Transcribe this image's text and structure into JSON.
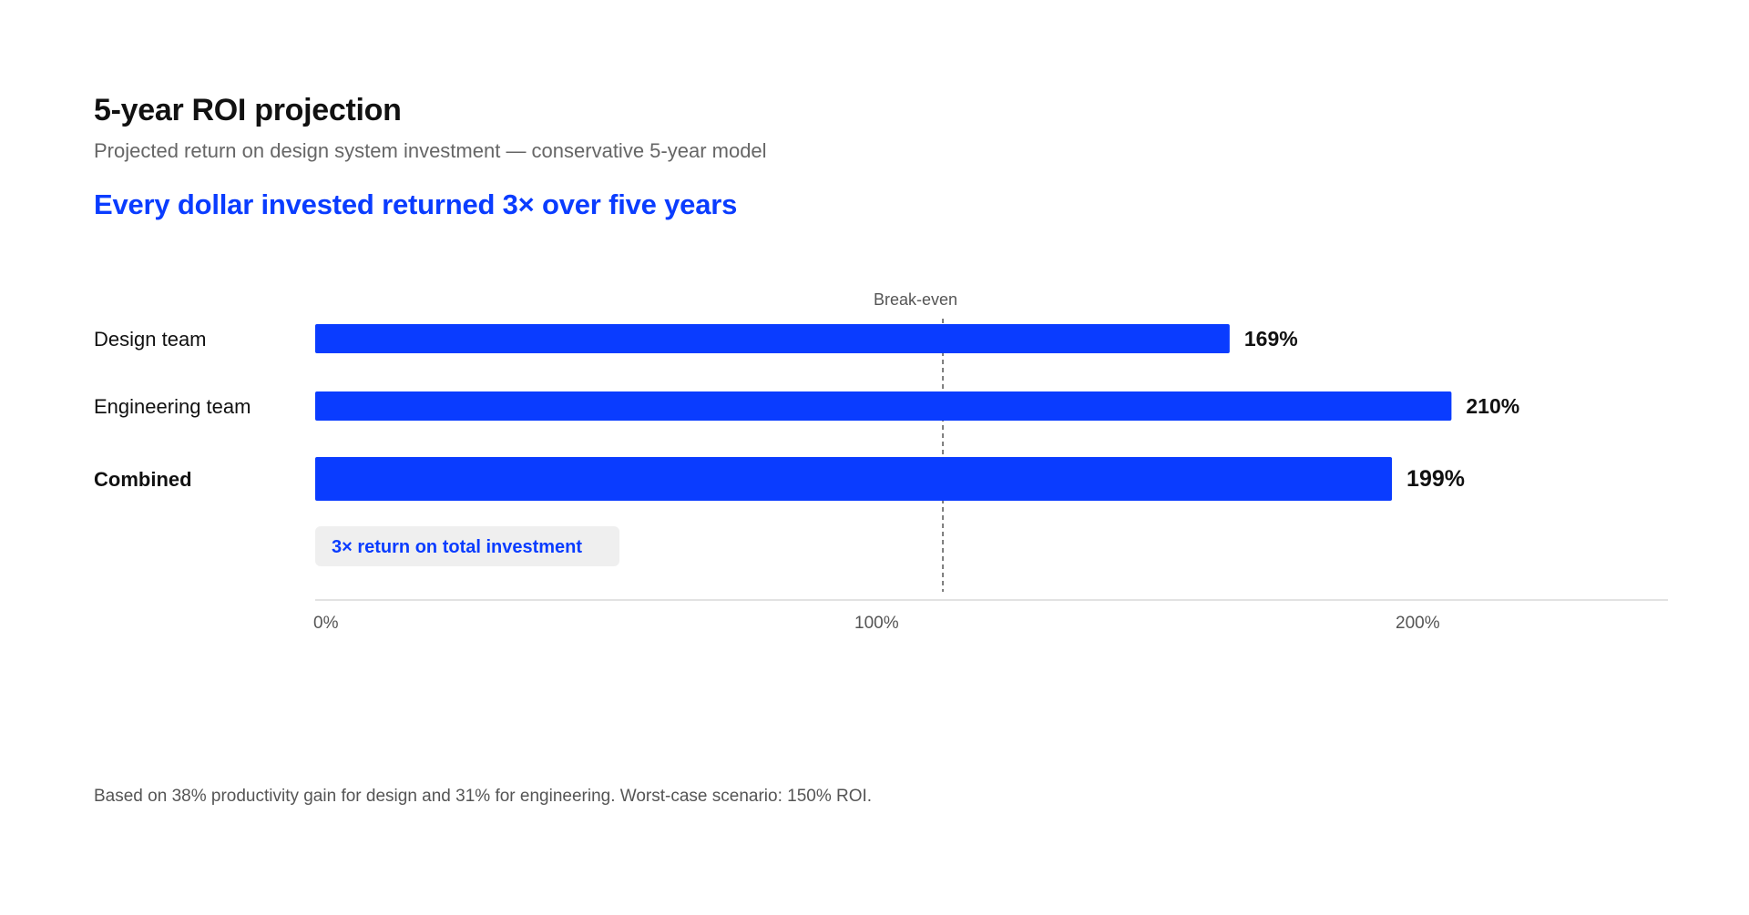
{
  "header": {
    "title": "5-year ROI projection",
    "subtitle": "Projected return on design system investment — conservative 5-year model",
    "headline": "Every dollar invested returned 3× over five years"
  },
  "chart_data": {
    "type": "bar",
    "orientation": "horizontal",
    "categories": [
      "Design team",
      "Engineering team",
      "Combined"
    ],
    "values": [
      169,
      210,
      199
    ],
    "value_labels": [
      "169%",
      "210%",
      "199%"
    ],
    "emphasized_category": "Combined",
    "xlim": [
      0,
      250
    ],
    "x_ticks": [
      0,
      100,
      200
    ],
    "x_tick_labels": [
      "0%",
      "100%",
      "200%"
    ],
    "reference_line": {
      "label": "Break-even",
      "value": 116
    },
    "callout": "3× return on total investment",
    "bar_color": "#0a3cff",
    "grid": false,
    "legend": "none"
  },
  "footnote": "Based on 38% productivity gain for design and 31% for engineering. Worst-case scenario: 150% ROI."
}
